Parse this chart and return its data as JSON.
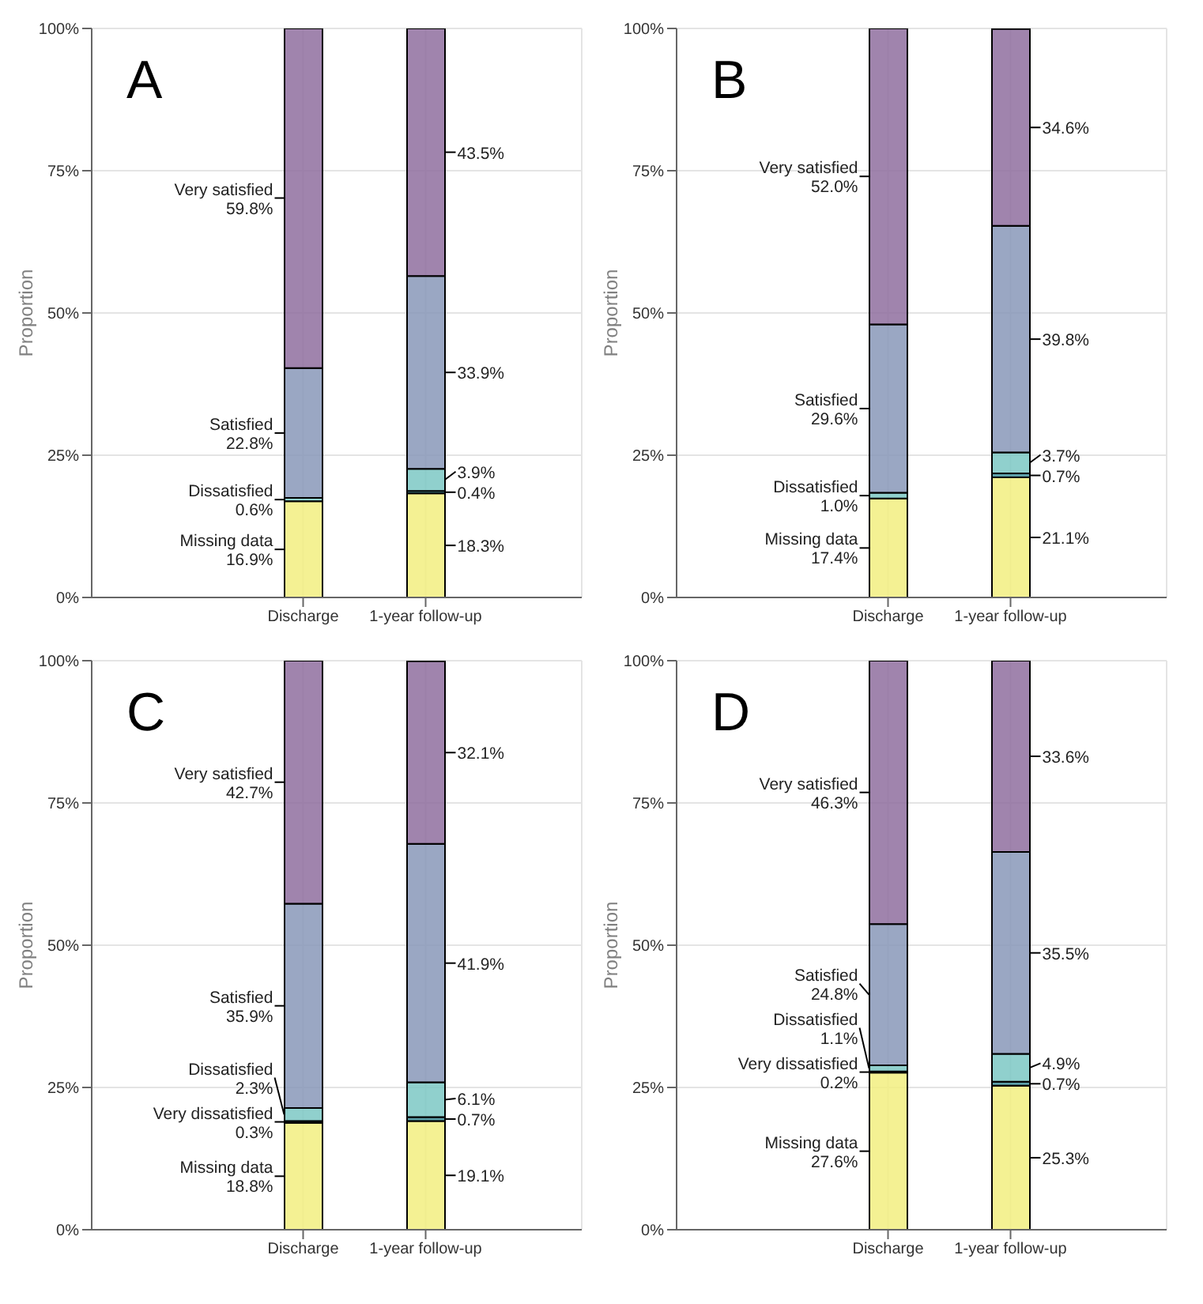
{
  "chart_data": [
    {
      "type": "bar",
      "title": "A",
      "ylabel": "Proportion",
      "stacked": true,
      "grid": true,
      "categories": [
        "Discharge",
        "1-year follow-up"
      ],
      "ylim": [
        0,
        100
      ],
      "yticks": [
        {
          "value": 0,
          "label": "0%"
        },
        {
          "value": 25,
          "label": "25%"
        },
        {
          "value": 50,
          "label": "50%"
        },
        {
          "value": 75,
          "label": "75%"
        },
        {
          "value": 100,
          "label": "100%"
        }
      ],
      "series": [
        {
          "name": "Missing data",
          "color": "#f2ee80",
          "values": [
            16.9,
            18.3
          ],
          "value_labels": [
            "16.9%",
            "18.3%"
          ]
        },
        {
          "color": "#3f8f9a",
          "values": [
            null,
            0.4
          ],
          "value_labels": [
            null,
            "0.4%"
          ]
        },
        {
          "name": "Dissatisfied",
          "color": "#7cc8c4",
          "values": [
            0.6,
            3.9
          ],
          "value_labels": [
            "0.6%",
            "3.9%"
          ]
        },
        {
          "name": "Satisfied",
          "color": "#8898b8",
          "values": [
            22.8,
            33.9
          ],
          "value_labels": [
            "22.8%",
            "33.9%"
          ]
        },
        {
          "name": "Very satisfied",
          "color": "#8f6f9f",
          "values": [
            59.8,
            43.5
          ],
          "value_labels": [
            "59.8%",
            "43.5%"
          ]
        }
      ]
    },
    {
      "type": "bar",
      "title": "B",
      "ylabel": "Proportion",
      "stacked": true,
      "grid": true,
      "categories": [
        "Discharge",
        "1-year follow-up"
      ],
      "ylim": [
        0,
        100
      ],
      "yticks": [
        {
          "value": 0,
          "label": "0%"
        },
        {
          "value": 25,
          "label": "25%"
        },
        {
          "value": 50,
          "label": "50%"
        },
        {
          "value": 75,
          "label": "75%"
        },
        {
          "value": 100,
          "label": "100%"
        }
      ],
      "series": [
        {
          "name": "Missing data",
          "color": "#f2ee80",
          "values": [
            17.4,
            21.1
          ],
          "value_labels": [
            "17.4%",
            "21.1%"
          ]
        },
        {
          "color": "#3f8f9a",
          "values": [
            null,
            0.7
          ],
          "value_labels": [
            null,
            "0.7%"
          ]
        },
        {
          "name": "Dissatisfied",
          "color": "#7cc8c4",
          "values": [
            1.0,
            3.7
          ],
          "value_labels": [
            "1.0%",
            "3.7%"
          ]
        },
        {
          "name": "Satisfied",
          "color": "#8898b8",
          "values": [
            29.6,
            39.8
          ],
          "value_labels": [
            "29.6%",
            "39.8%"
          ]
        },
        {
          "name": "Very satisfied",
          "color": "#8f6f9f",
          "values": [
            52.0,
            34.6
          ],
          "value_labels": [
            "52.0%",
            "34.6%"
          ]
        }
      ]
    },
    {
      "type": "bar",
      "title": "C",
      "ylabel": "Proportion",
      "stacked": true,
      "grid": true,
      "categories": [
        "Discharge",
        "1-year follow-up"
      ],
      "ylim": [
        0,
        100
      ],
      "yticks": [
        {
          "value": 0,
          "label": "0%"
        },
        {
          "value": 25,
          "label": "25%"
        },
        {
          "value": 50,
          "label": "50%"
        },
        {
          "value": 75,
          "label": "75%"
        },
        {
          "value": 100,
          "label": "100%"
        }
      ],
      "series": [
        {
          "name": "Missing data",
          "color": "#f2ee80",
          "values": [
            18.8,
            19.1
          ],
          "value_labels": [
            "18.8%",
            "19.1%"
          ]
        },
        {
          "name": "Very dissatisfied",
          "color": "#3f8f9a",
          "values": [
            0.3,
            0.7
          ],
          "value_labels": [
            "0.3%",
            "0.7%"
          ]
        },
        {
          "name": "Dissatisfied",
          "color": "#7cc8c4",
          "values": [
            2.3,
            6.1
          ],
          "value_labels": [
            "2.3%",
            "6.1%"
          ]
        },
        {
          "name": "Satisfied",
          "color": "#8898b8",
          "values": [
            35.9,
            41.9
          ],
          "value_labels": [
            "35.9%",
            "41.9%"
          ]
        },
        {
          "name": "Very satisfied",
          "color": "#8f6f9f",
          "values": [
            42.7,
            32.1
          ],
          "value_labels": [
            "42.7%",
            "32.1%"
          ]
        }
      ]
    },
    {
      "type": "bar",
      "title": "D",
      "ylabel": "Proportion",
      "stacked": true,
      "grid": true,
      "categories": [
        "Discharge",
        "1-year follow-up"
      ],
      "ylim": [
        0,
        100
      ],
      "yticks": [
        {
          "value": 0,
          "label": "0%"
        },
        {
          "value": 25,
          "label": "25%"
        },
        {
          "value": 50,
          "label": "50%"
        },
        {
          "value": 75,
          "label": "75%"
        },
        {
          "value": 100,
          "label": "100%"
        }
      ],
      "series": [
        {
          "name": "Missing data",
          "color": "#f2ee80",
          "values": [
            27.6,
            25.3
          ],
          "value_labels": [
            "27.6%",
            "25.3%"
          ]
        },
        {
          "name": "Very dissatisfied",
          "color": "#3f8f9a",
          "values": [
            0.2,
            0.7
          ],
          "value_labels": [
            "0.2%",
            "0.7%"
          ]
        },
        {
          "name": "Dissatisfied",
          "color": "#7cc8c4",
          "values": [
            1.1,
            4.9
          ],
          "value_labels": [
            "1.1%",
            "4.9%"
          ]
        },
        {
          "name": "Satisfied",
          "color": "#8898b8",
          "values": [
            24.8,
            35.5
          ],
          "value_labels": [
            "24.8%",
            "35.5%"
          ]
        },
        {
          "name": "Very satisfied",
          "color": "#8f6f9f",
          "values": [
            46.3,
            33.6
          ],
          "value_labels": [
            "46.3%",
            "33.6%"
          ]
        }
      ]
    }
  ]
}
